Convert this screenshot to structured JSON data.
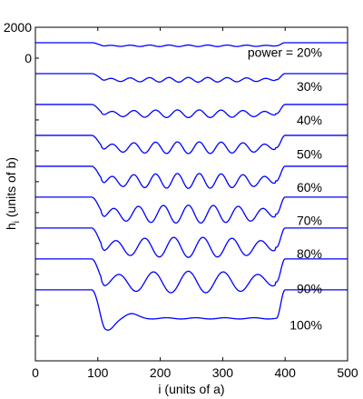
{
  "chart_data": {
    "type": "line",
    "title": "",
    "xlabel": "i (units of a)",
    "ylabel_main": "h",
    "ylabel_sub": "i",
    "ylabel_rest": " (units of b)",
    "xlim": [
      0,
      500
    ],
    "ylim": [
      -19600,
      2000
    ],
    "xticks": [
      0,
      100,
      200,
      300,
      400,
      500
    ],
    "yticks_labeled": [
      {
        "value": 2000,
        "label": "2000"
      },
      {
        "value": 0,
        "label": "0"
      }
    ],
    "yticks_minor": [
      -4000,
      -6000,
      -8000,
      -10000,
      -12000,
      -14000,
      -16000,
      -18000
    ],
    "line_color": "#0000ff",
    "series_offset_step": 2000,
    "series": [
      {
        "label": "power = 20%",
        "baseline": 1000,
        "depth": 200,
        "amplitude": 50,
        "humps": 9
      },
      {
        "label": "30%",
        "baseline": -1000,
        "depth": 400,
        "amplitude": 150,
        "humps": 9
      },
      {
        "label": "40%",
        "baseline": -3000,
        "depth": 600,
        "amplitude": 250,
        "humps": 8
      },
      {
        "label": "50%",
        "baseline": -5000,
        "depth": 800,
        "amplitude": 380,
        "humps": 8
      },
      {
        "label": "60%",
        "baseline": -7000,
        "depth": 950,
        "amplitude": 480,
        "humps": 8
      },
      {
        "label": "70%",
        "baseline": -9000,
        "depth": 1100,
        "amplitude": 580,
        "humps": 7
      },
      {
        "label": "80%",
        "baseline": -11000,
        "depth": 1250,
        "amplitude": 650,
        "humps": 6
      },
      {
        "label": "90%",
        "baseline": -13000,
        "depth": 1500,
        "amplitude": 700,
        "humps": 5
      },
      {
        "label": "100%",
        "baseline": -15000,
        "depth": 1850,
        "amplitude": 100,
        "humps": 0
      }
    ]
  }
}
